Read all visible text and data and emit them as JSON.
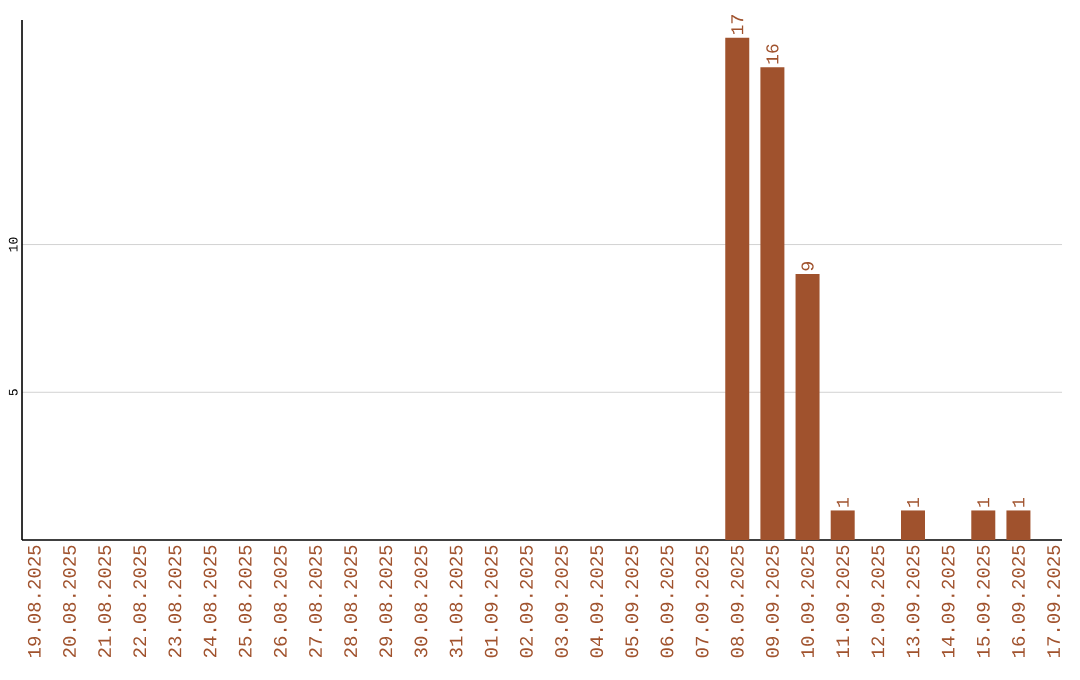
{
  "chart_data": {
    "type": "bar",
    "categories": [
      "19.08.2025",
      "20.08.2025",
      "21.08.2025",
      "22.08.2025",
      "23.08.2025",
      "24.08.2025",
      "25.08.2025",
      "26.08.2025",
      "27.08.2025",
      "28.08.2025",
      "29.08.2025",
      "30.08.2025",
      "31.08.2025",
      "01.09.2025",
      "02.09.2025",
      "03.09.2025",
      "04.09.2025",
      "05.09.2025",
      "06.09.2025",
      "07.09.2025",
      "08.09.2025",
      "09.09.2025",
      "10.09.2025",
      "11.09.2025",
      "12.09.2025",
      "13.09.2025",
      "14.09.2025",
      "15.09.2025",
      "16.09.2025",
      "17.09.2025"
    ],
    "values": [
      0,
      0,
      0,
      0,
      0,
      0,
      0,
      0,
      0,
      0,
      0,
      0,
      0,
      0,
      0,
      0,
      0,
      0,
      0,
      0,
      17,
      16,
      9,
      1,
      0,
      1,
      0,
      1,
      1,
      0
    ],
    "value_labels": [
      null,
      null,
      null,
      null,
      null,
      null,
      null,
      null,
      null,
      null,
      null,
      null,
      null,
      null,
      null,
      null,
      null,
      null,
      null,
      null,
      "17",
      "16",
      "9",
      "1",
      null,
      "1",
      null,
      "1",
      "1",
      null
    ],
    "color": "#a0522d",
    "ylim": [
      0,
      17.6
    ],
    "yticks": [
      5,
      10
    ],
    "grid": "y"
  }
}
